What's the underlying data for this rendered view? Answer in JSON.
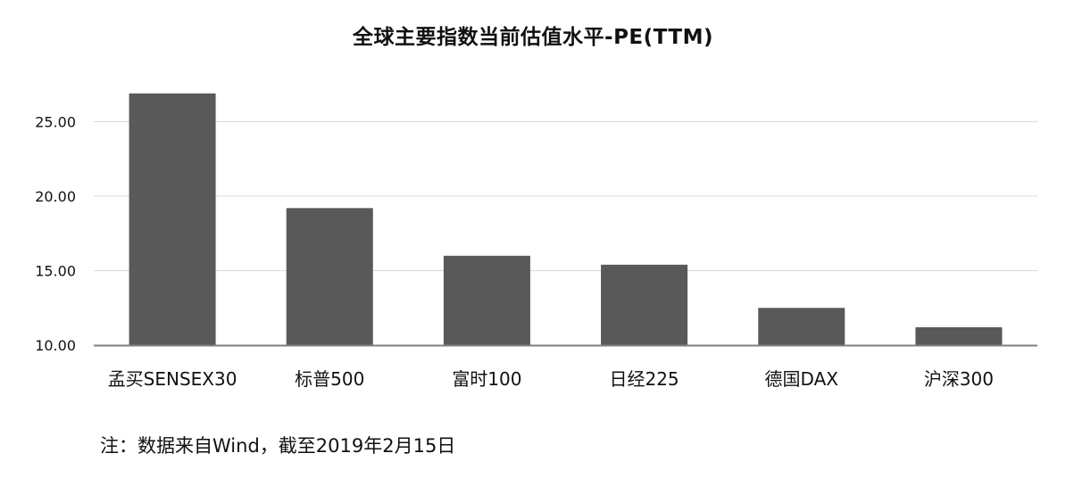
{
  "chart_data": {
    "type": "bar",
    "title": "全球主要指数当前估值水平-PE(TTM)",
    "categories": [
      "孟买SENSEX30",
      "标普500",
      "富时100",
      "日经225",
      "德国DAX",
      "沪深300"
    ],
    "values": [
      26.9,
      19.2,
      16.0,
      15.4,
      12.5,
      11.2
    ],
    "ylim": [
      10,
      28
    ],
    "yticks": [
      "10.00",
      "15.00",
      "20.00",
      "25.00"
    ],
    "ytick_values": [
      10,
      15,
      20,
      25
    ],
    "grid": true,
    "legend": "none",
    "colors": {
      "bar": "#595959",
      "grid": "#d9d9d9",
      "axis": "#7f7f7f"
    }
  },
  "footnote": "注：数据来自Wind，截至2019年2月15日"
}
